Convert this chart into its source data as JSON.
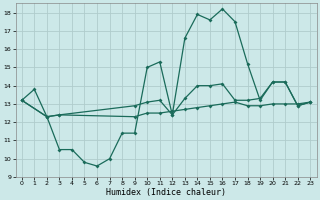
{
  "xlabel": "Humidex (Indice chaleur)",
  "ylabel": "",
  "background_color": "#cce8e8",
  "grid_color": "#b0cccc",
  "line_color": "#1a6b5a",
  "xlim": [
    -0.5,
    23.5
  ],
  "ylim": [
    9,
    18.5
  ],
  "yticks": [
    9,
    10,
    11,
    12,
    13,
    14,
    15,
    16,
    17,
    18
  ],
  "xticks": [
    0,
    1,
    2,
    3,
    4,
    5,
    6,
    7,
    8,
    9,
    10,
    11,
    12,
    13,
    14,
    15,
    16,
    17,
    18,
    19,
    20,
    21,
    22,
    23
  ],
  "line1_x": [
    0,
    1,
    2,
    3,
    4,
    5,
    6,
    7,
    8,
    9,
    10,
    11,
    12,
    13,
    14,
    15,
    16,
    17,
    18,
    19,
    20,
    21,
    22,
    23
  ],
  "line1_y": [
    13.2,
    13.8,
    12.3,
    10.5,
    10.5,
    9.8,
    9.6,
    10.0,
    11.4,
    11.4,
    15.0,
    15.3,
    12.4,
    16.6,
    17.9,
    17.6,
    18.2,
    17.5,
    15.2,
    13.2,
    14.2,
    14.2,
    12.9,
    13.1
  ],
  "line2_x": [
    0,
    2,
    3,
    9,
    10,
    11,
    12,
    13,
    14,
    15,
    16,
    17,
    18,
    19,
    20,
    21,
    22,
    23
  ],
  "line2_y": [
    13.2,
    12.3,
    12.4,
    12.9,
    13.1,
    13.2,
    12.4,
    13.3,
    14.0,
    14.0,
    14.1,
    13.2,
    13.2,
    13.3,
    14.2,
    14.2,
    12.9,
    13.1
  ],
  "line3_x": [
    0,
    2,
    3,
    9,
    10,
    11,
    12,
    13,
    14,
    15,
    16,
    17,
    18,
    19,
    20,
    21,
    22,
    23
  ],
  "line3_y": [
    13.2,
    12.3,
    12.4,
    12.3,
    12.5,
    12.5,
    12.6,
    12.7,
    12.8,
    12.9,
    13.0,
    13.1,
    12.9,
    12.9,
    13.0,
    13.0,
    13.0,
    13.1
  ]
}
